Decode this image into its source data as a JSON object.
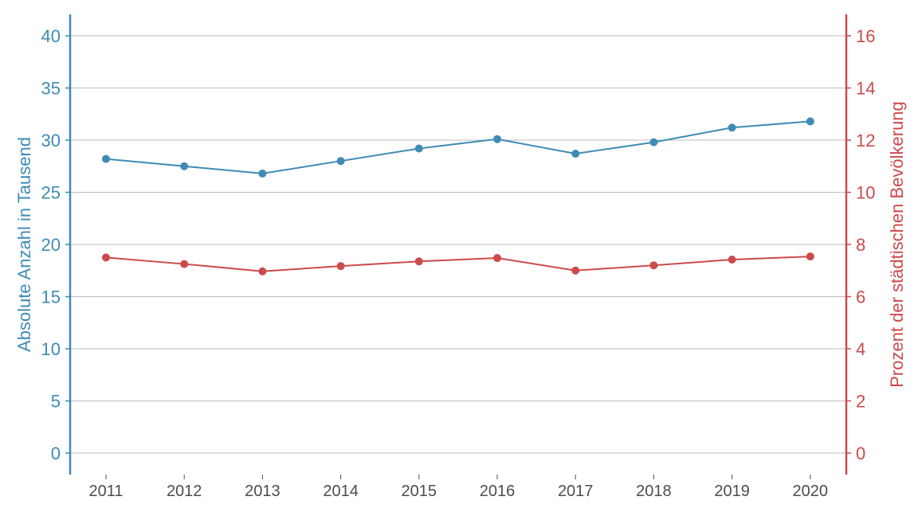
{
  "chart_data": {
    "type": "line",
    "x": [
      "2011",
      "2012",
      "2013",
      "2014",
      "2015",
      "2016",
      "2017",
      "2018",
      "2019",
      "2020"
    ],
    "series": [
      {
        "axis": "left",
        "color": "#3e8bb5",
        "values": [
          28.2,
          27.5,
          26.8,
          28.0,
          29.2,
          30.1,
          28.7,
          29.8,
          31.2,
          31.8
        ]
      },
      {
        "axis": "right",
        "color": "#cc4a4c",
        "values": [
          7.5,
          7.25,
          6.97,
          7.17,
          7.35,
          7.48,
          7.0,
          7.2,
          7.42,
          7.54
        ]
      }
    ],
    "ylabel_left": "Absolute Anzahl in Tausend",
    "ylabel_right": "Prozent der städtischen Bevölkerung",
    "ylim_left": [
      0,
      40
    ],
    "ylim_right": [
      0,
      16
    ],
    "yticks_left": [
      "0",
      "5",
      "10",
      "15",
      "20",
      "25",
      "30",
      "35",
      "40"
    ],
    "yticks_right": [
      "0",
      "2",
      "4",
      "6",
      "8",
      "10",
      "12",
      "14",
      "16"
    ],
    "grid": true
  }
}
